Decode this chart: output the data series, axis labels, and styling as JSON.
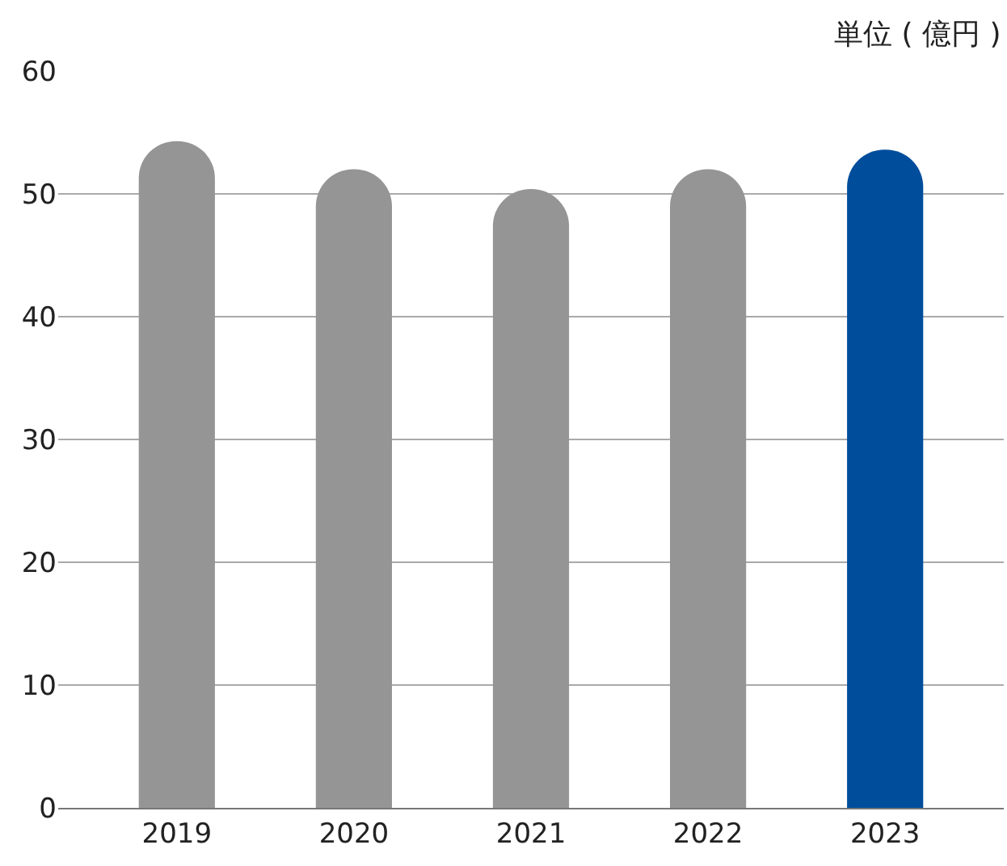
{
  "chart_data": {
    "type": "bar",
    "ylabel": "単位 ( 億円 )",
    "categories": [
      "2019",
      "2020",
      "2021",
      "2022",
      "2023"
    ],
    "values": [
      54.3,
      52.0,
      50.4,
      52.0,
      53.6
    ],
    "colors": [
      "#959595",
      "#959595",
      "#959595",
      "#959595",
      "#004d9c"
    ],
    "ylim": [
      0,
      60
    ],
    "yticks": [
      0,
      10,
      20,
      30,
      40,
      50,
      60
    ],
    "grid": "y"
  }
}
